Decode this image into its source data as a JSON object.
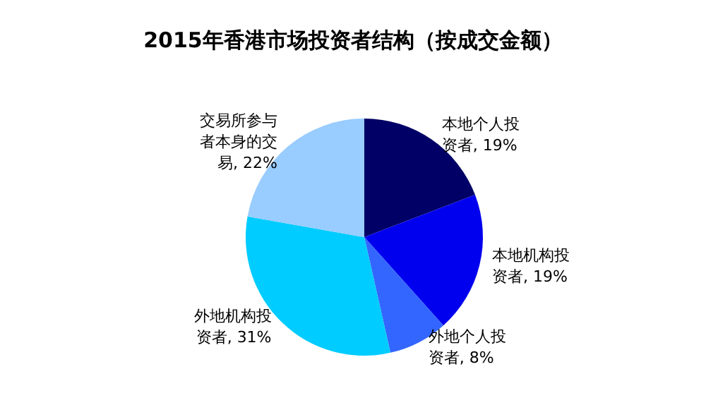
{
  "chart_data": {
    "type": "pie",
    "title": "2015年香港市场投资者结构（按成交金额）",
    "categories": [
      "本地个人投资者",
      "本地机构投资者",
      "外地个人投资者",
      "外地机构投资者",
      "交易所参与者本身的交易"
    ],
    "values": [
      19,
      19,
      8,
      31,
      22
    ],
    "value_labels": [
      "19%",
      "19%",
      "8%",
      "31%",
      "22%"
    ],
    "colors": [
      "#000066",
      "#0000ee",
      "#3366ff",
      "#00ccff",
      "#99ccff"
    ],
    "legend": false
  }
}
